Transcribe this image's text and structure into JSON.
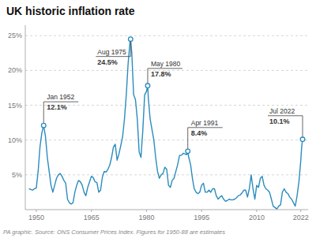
{
  "chart_data": {
    "type": "line",
    "title": "UK historic inflation rate",
    "source": "PA graphic. Source: ONS Consumer Prices Index. Figures for 1950-88 are estimates",
    "color": "#2b8cbe",
    "grid": true,
    "xlim": [
      1947,
      2024
    ],
    "xticks": [
      1950,
      1965,
      1980,
      1995,
      2010,
      2022
    ],
    "ylim": [
      0,
      26.5
    ],
    "yticks": [
      {
        "value": 5,
        "label": "5%"
      },
      {
        "value": 10,
        "label": "10%"
      },
      {
        "value": 15,
        "label": "15%"
      },
      {
        "value": 20,
        "label": "20%"
      },
      {
        "value": 25,
        "label": "25%"
      }
    ],
    "x": [
      1948.0,
      1948.5,
      1949.0,
      1949.5,
      1950.0,
      1950.5,
      1951.0,
      1951.5,
      1952.0,
      1952.5,
      1953.0,
      1953.5,
      1954.0,
      1954.5,
      1955.0,
      1955.5,
      1956.0,
      1956.5,
      1957.0,
      1957.5,
      1958.0,
      1958.5,
      1959.0,
      1959.5,
      1960.0,
      1960.5,
      1961.0,
      1961.5,
      1962.0,
      1962.5,
      1963.0,
      1963.5,
      1964.0,
      1964.5,
      1965.0,
      1965.5,
      1966.0,
      1966.5,
      1967.0,
      1967.5,
      1968.0,
      1968.5,
      1969.0,
      1969.5,
      1970.0,
      1970.5,
      1971.0,
      1971.5,
      1972.0,
      1972.5,
      1973.0,
      1973.5,
      1974.0,
      1974.5,
      1975.0,
      1975.5,
      1975.67,
      1976.0,
      1976.5,
      1977.0,
      1977.5,
      1978.0,
      1978.5,
      1979.0,
      1979.5,
      1980.0,
      1980.33,
      1980.5,
      1981.0,
      1981.5,
      1982.0,
      1982.5,
      1983.0,
      1983.5,
      1984.0,
      1984.5,
      1985.0,
      1985.5,
      1986.0,
      1986.5,
      1987.0,
      1987.5,
      1988.0,
      1988.5,
      1989.0,
      1989.5,
      1990.0,
      1990.5,
      1991.0,
      1991.25,
      1991.5,
      1992.0,
      1992.5,
      1993.0,
      1993.5,
      1994.0,
      1994.5,
      1995.0,
      1995.5,
      1996.0,
      1996.5,
      1997.0,
      1997.5,
      1998.0,
      1998.5,
      1999.0,
      1999.5,
      2000.0,
      2000.5,
      2001.0,
      2001.5,
      2002.0,
      2002.5,
      2003.0,
      2003.5,
      2004.0,
      2004.5,
      2005.0,
      2005.5,
      2006.0,
      2006.5,
      2007.0,
      2007.5,
      2008.0,
      2008.5,
      2009.0,
      2009.5,
      2010.0,
      2010.5,
      2011.0,
      2011.5,
      2012.0,
      2012.5,
      2013.0,
      2013.5,
      2014.0,
      2014.5,
      2015.0,
      2015.5,
      2016.0,
      2016.5,
      2017.0,
      2017.5,
      2018.0,
      2018.5,
      2019.0,
      2019.5,
      2020.0,
      2020.5,
      2021.0,
      2021.5,
      2022.0,
      2022.25,
      2022.5
    ],
    "values": [
      3.0,
      2.9,
      2.8,
      3.0,
      3.1,
      5.5,
      9.0,
      11.0,
      12.1,
      10.5,
      7.5,
      5.5,
      3.5,
      2.5,
      3.5,
      4.5,
      5.0,
      5.2,
      4.8,
      4.2,
      3.8,
      1.5,
      1.0,
      0.8,
      1.0,
      2.5,
      3.5,
      4.2,
      4.0,
      3.5,
      2.5,
      2.0,
      3.2,
      4.0,
      4.8,
      4.6,
      4.0,
      3.9,
      2.5,
      2.8,
      4.7,
      5.5,
      5.4,
      5.8,
      6.4,
      7.5,
      9.0,
      9.4,
      7.1,
      8.0,
      9.2,
      10.5,
      13.0,
      16.5,
      21.0,
      24.0,
      24.5,
      22.5,
      16.5,
      15.8,
      13.0,
      8.3,
      7.5,
      11.4,
      16.5,
      17.0,
      17.8,
      16.0,
      13.0,
      11.5,
      10.0,
      7.5,
      5.5,
      4.5,
      5.0,
      5.2,
      6.1,
      5.8,
      3.5,
      3.2,
      4.2,
      4.5,
      5.5,
      6.5,
      7.8,
      7.8,
      8.1,
      8.0,
      7.9,
      8.4,
      7.5,
      6.5,
      4.5,
      3.0,
      2.5,
      2.3,
      2.5,
      3.5,
      3.8,
      2.5,
      2.5,
      2.8,
      2.5,
      3.0,
      3.0,
      2.0,
      1.5,
      1.8,
      2.0,
      1.5,
      1.2,
      1.3,
      1.5,
      1.4,
      1.4,
      1.5,
      1.7,
      2.0,
      2.1,
      2.4,
      2.8,
      2.8,
      1.8,
      3.0,
      5.0,
      3.0,
      1.5,
      3.5,
      3.2,
      4.5,
      4.8,
      3.5,
      3.0,
      2.8,
      2.5,
      1.5,
      0.5,
      0.3,
      0.1,
      0.5,
      0.7,
      2.5,
      3.0,
      2.5,
      2.3,
      1.8,
      1.5,
      1.0,
      0.5,
      2.0,
      4.0,
      7.0,
      9.0,
      10.1
    ],
    "annotations": [
      {
        "x": 1952.0,
        "y": 12.1,
        "label": "Jan 1952",
        "value_label": "12.1%"
      },
      {
        "x": 1975.67,
        "y": 24.5,
        "label": "Aug 1975",
        "value_label": "24.5%"
      },
      {
        "x": 1980.33,
        "y": 17.8,
        "label": "May 1980",
        "value_label": "17.8%"
      },
      {
        "x": 1991.25,
        "y": 8.4,
        "label": "Apr 1991",
        "value_label": "8.4%"
      },
      {
        "x": 2022.5,
        "y": 10.1,
        "label": "Jul 2022",
        "value_label": "10.1%"
      }
    ]
  }
}
